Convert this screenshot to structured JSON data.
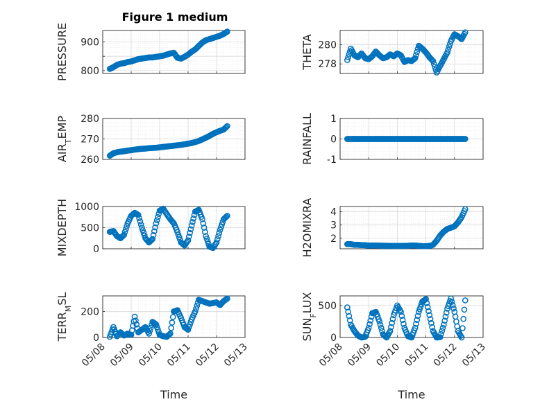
{
  "figure": {
    "title": "Figure 1 medium",
    "marker_color": "#0072BD",
    "grid": true,
    "minor_grid": true
  },
  "chart_data": [
    {
      "type": "scatter",
      "title": "Figure 1 medium",
      "ylabel": "PRESSURE",
      "ylim": [
        790,
        940
      ],
      "yticks": [
        800,
        850,
        900
      ],
      "yticklabels": [
        "800",
        "",
        "900"
      ],
      "x": [
        "2021-05-08T06:00",
        "2021-05-08T09:00",
        "2021-05-08T12:00",
        "2021-05-08T15:00",
        "2021-05-08T18:00",
        "2021-05-08T21:00",
        "2021-05-09T00:00",
        "2021-05-09T03:00",
        "2021-05-09T06:00",
        "2021-05-09T09:00",
        "2021-05-09T12:00",
        "2021-05-09T15:00",
        "2021-05-09T18:00",
        "2021-05-09T21:00",
        "2021-05-10T00:00",
        "2021-05-10T03:00",
        "2021-05-10T06:00",
        "2021-05-10T09:00",
        "2021-05-10T12:00",
        "2021-05-10T15:00",
        "2021-05-10T18:00",
        "2021-05-10T21:00",
        "2021-05-11T00:00",
        "2021-05-11T03:00",
        "2021-05-11T06:00",
        "2021-05-11T09:00",
        "2021-05-11T12:00",
        "2021-05-11T15:00",
        "2021-05-11T18:00",
        "2021-05-11T21:00",
        "2021-05-12T00:00",
        "2021-05-12T03:00",
        "2021-05-12T06:00",
        "2021-05-12T09:00"
      ],
      "y": [
        806,
        812,
        820,
        824,
        826,
        830,
        832,
        836,
        840,
        842,
        844,
        846,
        846,
        848,
        850,
        852,
        856,
        860,
        862,
        845,
        842,
        848,
        856,
        866,
        874,
        886,
        898,
        906,
        910,
        914,
        918,
        922,
        928,
        936
      ]
    },
    {
      "type": "scatter",
      "ylabel": "THETA",
      "ylim": [
        277,
        281.5
      ],
      "yticks": [
        278,
        280
      ],
      "yticklabels": [
        "278",
        "280"
      ],
      "x": [
        "2021-05-08T06:00",
        "2021-05-08T09:00",
        "2021-05-08T12:00",
        "2021-05-08T15:00",
        "2021-05-08T18:00",
        "2021-05-08T21:00",
        "2021-05-09T00:00",
        "2021-05-09T03:00",
        "2021-05-09T06:00",
        "2021-05-09T09:00",
        "2021-05-09T12:00",
        "2021-05-09T15:00",
        "2021-05-09T18:00",
        "2021-05-09T21:00",
        "2021-05-10T00:00",
        "2021-05-10T03:00",
        "2021-05-10T06:00",
        "2021-05-10T09:00",
        "2021-05-10T12:00",
        "2021-05-10T15:00",
        "2021-05-10T18:00",
        "2021-05-10T21:00",
        "2021-05-11T00:00",
        "2021-05-11T03:00",
        "2021-05-11T06:00",
        "2021-05-11T09:00",
        "2021-05-11T12:00",
        "2021-05-11T15:00",
        "2021-05-11T18:00",
        "2021-05-11T21:00",
        "2021-05-12T00:00",
        "2021-05-12T03:00",
        "2021-05-12T06:00",
        "2021-05-12T09:00"
      ],
      "y": [
        278.4,
        279.6,
        278.9,
        278.7,
        279.1,
        278.6,
        278.5,
        278.8,
        279.3,
        278.9,
        278.6,
        278.7,
        279.0,
        278.8,
        279.1,
        278.9,
        278.2,
        278.4,
        278.3,
        278.6,
        279.9,
        279.6,
        279.2,
        278.7,
        278.3,
        277.1,
        277.8,
        278.5,
        279.2,
        280.4,
        281.1,
        280.9,
        280.6,
        281.3
      ]
    },
    {
      "type": "scatter",
      "ylabel": "AIR_TEMP",
      "ylim": [
        260,
        280
      ],
      "yticks": [
        260,
        270,
        280
      ],
      "yticklabels": [
        "260",
        "270",
        "280"
      ],
      "x": [
        "2021-05-08T06:00",
        "2021-05-08T09:00",
        "2021-05-08T12:00",
        "2021-05-08T15:00",
        "2021-05-08T18:00",
        "2021-05-08T21:00",
        "2021-05-09T00:00",
        "2021-05-09T03:00",
        "2021-05-09T06:00",
        "2021-05-09T09:00",
        "2021-05-09T12:00",
        "2021-05-09T15:00",
        "2021-05-09T18:00",
        "2021-05-09T21:00",
        "2021-05-10T00:00",
        "2021-05-10T03:00",
        "2021-05-10T06:00",
        "2021-05-10T09:00",
        "2021-05-10T12:00",
        "2021-05-10T15:00",
        "2021-05-10T18:00",
        "2021-05-10T21:00",
        "2021-05-11T00:00",
        "2021-05-11T03:00",
        "2021-05-11T06:00",
        "2021-05-11T09:00",
        "2021-05-11T12:00",
        "2021-05-11T15:00",
        "2021-05-11T18:00",
        "2021-05-11T21:00",
        "2021-05-12T00:00",
        "2021-05-12T03:00",
        "2021-05-12T06:00",
        "2021-05-12T09:00"
      ],
      "y": [
        261.8,
        263.0,
        263.5,
        263.8,
        264.0,
        264.3,
        264.5,
        264.8,
        265.0,
        265.2,
        265.3,
        265.5,
        265.6,
        265.7,
        265.9,
        266.1,
        266.3,
        266.5,
        266.7,
        266.9,
        267.1,
        267.4,
        267.7,
        268.0,
        268.5,
        269.0,
        269.8,
        270.6,
        271.5,
        272.5,
        273.3,
        274.0,
        274.6,
        276.3
      ]
    },
    {
      "type": "scatter",
      "ylabel": "RAINFALL",
      "ylim": [
        -1,
        1
      ],
      "yticks": [
        -1,
        0,
        1
      ],
      "yticklabels": [
        "-1",
        "0",
        "1"
      ],
      "x": [
        "2021-05-08T06:00",
        "2021-05-08T09:00",
        "2021-05-08T12:00",
        "2021-05-08T15:00",
        "2021-05-08T18:00",
        "2021-05-08T21:00",
        "2021-05-09T00:00",
        "2021-05-09T03:00",
        "2021-05-09T06:00",
        "2021-05-09T09:00",
        "2021-05-09T12:00",
        "2021-05-09T15:00",
        "2021-05-09T18:00",
        "2021-05-09T21:00",
        "2021-05-10T00:00",
        "2021-05-10T03:00",
        "2021-05-10T06:00",
        "2021-05-10T09:00",
        "2021-05-10T12:00",
        "2021-05-10T15:00",
        "2021-05-10T18:00",
        "2021-05-10T21:00",
        "2021-05-11T00:00",
        "2021-05-11T03:00",
        "2021-05-11T06:00",
        "2021-05-11T09:00",
        "2021-05-11T12:00",
        "2021-05-11T15:00",
        "2021-05-11T18:00",
        "2021-05-11T21:00",
        "2021-05-12T00:00",
        "2021-05-12T03:00",
        "2021-05-12T06:00",
        "2021-05-12T09:00"
      ],
      "y": [
        0,
        0,
        0,
        0,
        0,
        0,
        0,
        0,
        0,
        0,
        0,
        0,
        0,
        0,
        0,
        0,
        0,
        0,
        0,
        0,
        0,
        0,
        0,
        0,
        0,
        0,
        0,
        0,
        0,
        0,
        0,
        0,
        0,
        0
      ]
    },
    {
      "type": "scatter",
      "ylabel": "MIXDEPTH",
      "ylim": [
        0,
        1000
      ],
      "yticks": [
        0,
        500,
        1000
      ],
      "yticklabels": [
        "0",
        "500",
        "1000"
      ],
      "x": [
        "2021-05-08T06:00",
        "2021-05-08T09:00",
        "2021-05-08T12:00",
        "2021-05-08T15:00",
        "2021-05-08T18:00",
        "2021-05-08T21:00",
        "2021-05-09T00:00",
        "2021-05-09T03:00",
        "2021-05-09T06:00",
        "2021-05-09T09:00",
        "2021-05-09T12:00",
        "2021-05-09T15:00",
        "2021-05-09T18:00",
        "2021-05-09T21:00",
        "2021-05-10T00:00",
        "2021-05-10T03:00",
        "2021-05-10T06:00",
        "2021-05-10T09:00",
        "2021-05-10T12:00",
        "2021-05-10T15:00",
        "2021-05-10T18:00",
        "2021-05-10T21:00",
        "2021-05-11T00:00",
        "2021-05-11T03:00",
        "2021-05-11T06:00",
        "2021-05-11T09:00",
        "2021-05-11T12:00",
        "2021-05-11T15:00",
        "2021-05-11T18:00",
        "2021-05-11T21:00",
        "2021-05-12T00:00",
        "2021-05-12T03:00",
        "2021-05-12T06:00",
        "2021-05-12T09:00"
      ],
      "y": [
        400,
        420,
        300,
        250,
        330,
        600,
        780,
        850,
        800,
        500,
        250,
        150,
        230,
        600,
        900,
        950,
        820,
        700,
        600,
        400,
        150,
        80,
        200,
        550,
        880,
        920,
        700,
        300,
        50,
        20,
        150,
        450,
        700,
        780
      ]
    },
    {
      "type": "scatter",
      "ylabel": "H2OMIXRA",
      "ylim": [
        1.2,
        4.4
      ],
      "yticks": [
        2,
        3,
        4
      ],
      "yticklabels": [
        "2",
        "3",
        "4"
      ],
      "x": [
        "2021-05-08T06:00",
        "2021-05-08T09:00",
        "2021-05-08T12:00",
        "2021-05-08T15:00",
        "2021-05-08T18:00",
        "2021-05-08T21:00",
        "2021-05-09T00:00",
        "2021-05-09T03:00",
        "2021-05-09T06:00",
        "2021-05-09T09:00",
        "2021-05-09T12:00",
        "2021-05-09T15:00",
        "2021-05-09T18:00",
        "2021-05-09T21:00",
        "2021-05-10T00:00",
        "2021-05-10T03:00",
        "2021-05-10T06:00",
        "2021-05-10T09:00",
        "2021-05-10T12:00",
        "2021-05-10T15:00",
        "2021-05-10T18:00",
        "2021-05-10T21:00",
        "2021-05-11T00:00",
        "2021-05-11T03:00",
        "2021-05-11T06:00",
        "2021-05-11T09:00",
        "2021-05-11T12:00",
        "2021-05-11T15:00",
        "2021-05-11T18:00",
        "2021-05-11T21:00",
        "2021-05-12T00:00",
        "2021-05-12T03:00",
        "2021-05-12T06:00",
        "2021-05-12T09:00"
      ],
      "y": [
        1.55,
        1.55,
        1.5,
        1.5,
        1.48,
        1.47,
        1.45,
        1.45,
        1.45,
        1.44,
        1.43,
        1.43,
        1.42,
        1.42,
        1.42,
        1.42,
        1.42,
        1.43,
        1.45,
        1.45,
        1.42,
        1.4,
        1.4,
        1.42,
        1.5,
        1.8,
        2.2,
        2.5,
        2.7,
        2.8,
        2.9,
        3.2,
        3.6,
        4.2
      ]
    },
    {
      "type": "scatter",
      "ylabel": "TERR_MSL",
      "ylim": [
        0,
        320
      ],
      "yticks": [
        0,
        200
      ],
      "yticklabels": [
        "0",
        "200"
      ],
      "xticklabels": [
        "05/08",
        "05/09",
        "05/10",
        "05/11",
        "05/12",
        "05/13"
      ],
      "xlabel": "Time",
      "x": [
        "2021-05-08T06:00",
        "2021-05-08T09:00",
        "2021-05-08T12:00",
        "2021-05-08T15:00",
        "2021-05-08T18:00",
        "2021-05-08T21:00",
        "2021-05-09T00:00",
        "2021-05-09T03:00",
        "2021-05-09T06:00",
        "2021-05-09T09:00",
        "2021-05-09T12:00",
        "2021-05-09T15:00",
        "2021-05-09T18:00",
        "2021-05-09T21:00",
        "2021-05-10T00:00",
        "2021-05-10T03:00",
        "2021-05-10T06:00",
        "2021-05-10T09:00",
        "2021-05-10T12:00",
        "2021-05-10T15:00",
        "2021-05-10T18:00",
        "2021-05-10T21:00",
        "2021-05-11T00:00",
        "2021-05-11T03:00",
        "2021-05-11T06:00",
        "2021-05-11T09:00",
        "2021-05-11T12:00",
        "2021-05-11T15:00",
        "2021-05-11T18:00",
        "2021-05-11T21:00",
        "2021-05-12T00:00",
        "2021-05-12T03:00",
        "2021-05-12T06:00",
        "2021-05-12T09:00"
      ],
      "y": [
        5,
        80,
        10,
        40,
        15,
        30,
        20,
        160,
        40,
        60,
        80,
        30,
        120,
        100,
        20,
        10,
        5,
        30,
        200,
        210,
        150,
        80,
        60,
        140,
        200,
        290,
        280,
        270,
        260,
        265,
        270,
        250,
        280,
        300
      ]
    },
    {
      "type": "scatter",
      "ylabel": "SUN_FLUX",
      "ylim": [
        0,
        650
      ],
      "yticks": [
        0,
        500
      ],
      "yticklabels": [
        "0",
        "500"
      ],
      "xticklabels": [
        "05/08",
        "05/09",
        "05/10",
        "05/11",
        "05/12",
        "05/13"
      ],
      "xlabel": "Time",
      "x": [
        "2021-05-08T06:00",
        "2021-05-08T09:00",
        "2021-05-08T12:00",
        "2021-05-08T15:00",
        "2021-05-08T18:00",
        "2021-05-08T21:00",
        "2021-05-09T00:00",
        "2021-05-09T03:00",
        "2021-05-09T06:00",
        "2021-05-09T09:00",
        "2021-05-09T12:00",
        "2021-05-09T15:00",
        "2021-05-09T18:00",
        "2021-05-09T21:00",
        "2021-05-10T00:00",
        "2021-05-10T03:00",
        "2021-05-10T06:00",
        "2021-05-10T09:00",
        "2021-05-10T12:00",
        "2021-05-10T15:00",
        "2021-05-10T18:00",
        "2021-05-10T21:00",
        "2021-05-11T00:00",
        "2021-05-11T03:00",
        "2021-05-11T06:00",
        "2021-05-11T09:00",
        "2021-05-11T12:00",
        "2021-05-11T15:00",
        "2021-05-11T18:00",
        "2021-05-11T21:00",
        "2021-05-12T00:00",
        "2021-05-12T03:00",
        "2021-05-12T06:00",
        "2021-05-12T09:00"
      ],
      "y": [
        470,
        200,
        100,
        30,
        0,
        10,
        150,
        380,
        400,
        250,
        50,
        0,
        100,
        350,
        500,
        400,
        150,
        20,
        0,
        150,
        400,
        560,
        600,
        350,
        100,
        0,
        5,
        200,
        450,
        610,
        400,
        100,
        0,
        580
      ]
    }
  ]
}
